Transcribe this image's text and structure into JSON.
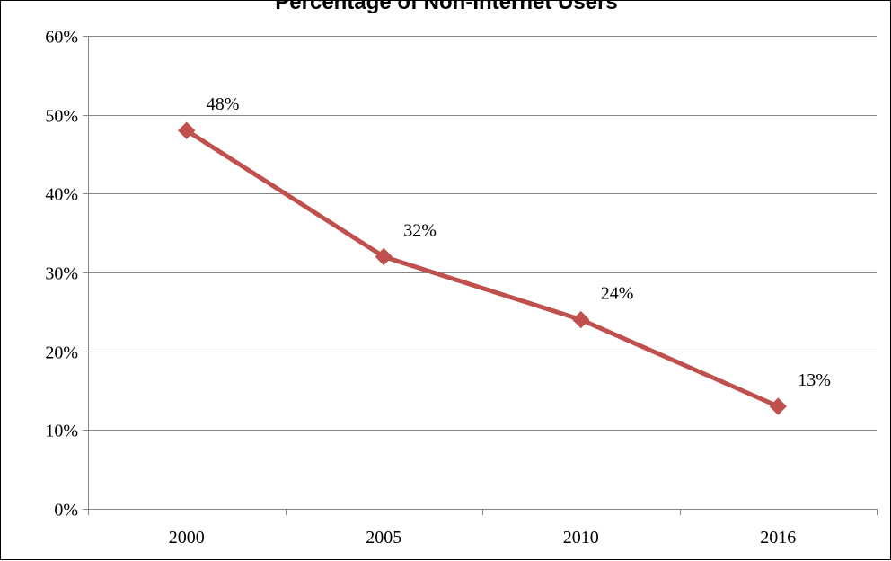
{
  "chart_data": {
    "type": "line",
    "title": "Percentage of Non-Internet Users",
    "xlabel": "",
    "ylabel": "",
    "categories": [
      "2000",
      "2005",
      "2010",
      "2016"
    ],
    "series": [
      {
        "values": [
          48,
          32,
          24,
          13
        ],
        "data_labels": [
          "48%",
          "32%",
          "24%",
          "13%"
        ],
        "color": "#C0504D",
        "marker": "diamond"
      }
    ],
    "ylim": [
      0,
      60
    ],
    "y_ticks": [
      0,
      10,
      20,
      30,
      40,
      50,
      60
    ],
    "y_tick_labels": [
      "0%",
      "10%",
      "20%",
      "30%",
      "40%",
      "50%",
      "60%"
    ],
    "grid": "horizontal",
    "legend": "none"
  }
}
